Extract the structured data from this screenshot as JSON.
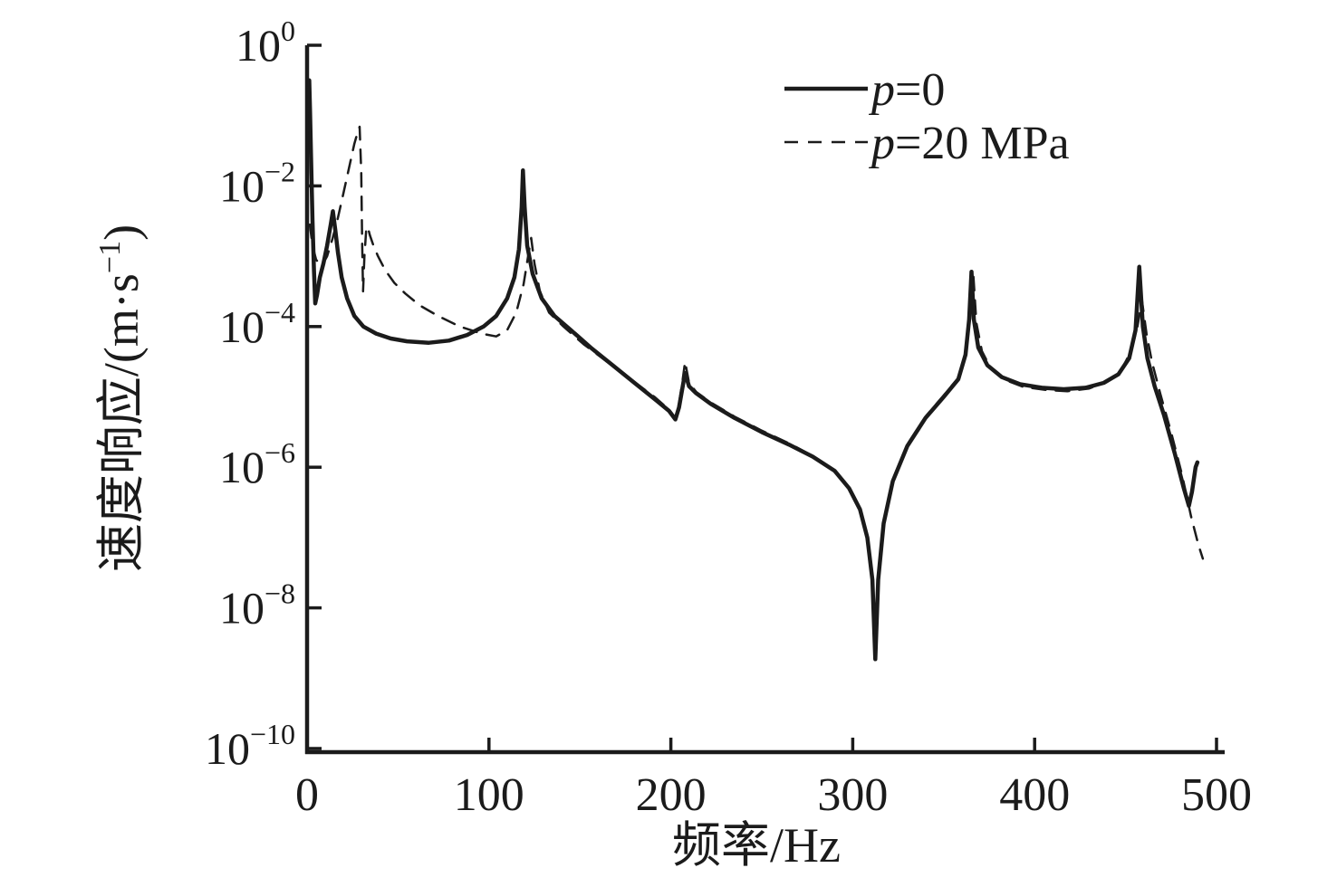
{
  "figure": {
    "background": "#ffffff",
    "ink_color": "#1b1b1b"
  },
  "chart_data": {
    "type": "line",
    "title": "",
    "xlabel": "频率/Hz",
    "ylabel_full": "速度响应/(m·s⁻¹)",
    "ylabel_prefix": "速度响应/(m·s",
    "ylabel_sup": "−1",
    "ylabel_suffix": ")",
    "xlim": [
      0,
      500
    ],
    "ylim_log10": [
      -10,
      0
    ],
    "x_ticks": [
      0,
      100,
      200,
      300,
      400,
      500
    ],
    "y_tick_base": "10",
    "y_tick_exponents": [
      0,
      -2,
      -4,
      -6,
      -8,
      -10
    ],
    "grid": false,
    "y_scale": "log",
    "legend": {
      "position": "top-right-inside",
      "entries": [
        {
          "label": "p=0",
          "italic_first_char": true,
          "style": "solid"
        },
        {
          "label": "p=20 MPa",
          "italic_first_char": true,
          "style": "dashed"
        }
      ]
    },
    "series": [
      {
        "name": "p=0",
        "style": "solid",
        "color": "#1b1b1b",
        "stroke_width": 4.5,
        "points_freq_log10v": [
          [
            1.2,
            -0.5
          ],
          [
            1.6,
            -0.9
          ],
          [
            2.2,
            -1.6
          ],
          [
            3.0,
            -2.5
          ],
          [
            3.8,
            -3.2
          ],
          [
            4.5,
            -3.67
          ],
          [
            5.5,
            -3.55
          ],
          [
            7,
            -3.3
          ],
          [
            9,
            -3.1
          ],
          [
            11,
            -2.85
          ],
          [
            13,
            -2.55
          ],
          [
            14.2,
            -2.36
          ],
          [
            15.5,
            -2.62
          ],
          [
            17,
            -2.95
          ],
          [
            19,
            -3.3
          ],
          [
            22,
            -3.6
          ],
          [
            26,
            -3.85
          ],
          [
            31,
            -4.0
          ],
          [
            38,
            -4.1
          ],
          [
            46,
            -4.17
          ],
          [
            55,
            -4.21
          ],
          [
            67,
            -4.23
          ],
          [
            78,
            -4.2
          ],
          [
            88,
            -4.12
          ],
          [
            97,
            -4.0
          ],
          [
            104,
            -3.85
          ],
          [
            110,
            -3.6
          ],
          [
            114,
            -3.3
          ],
          [
            116.5,
            -2.9
          ],
          [
            118,
            -2.3
          ],
          [
            118.7,
            -1.78
          ],
          [
            119.6,
            -2.3
          ],
          [
            121,
            -2.85
          ],
          [
            124,
            -3.25
          ],
          [
            129,
            -3.6
          ],
          [
            136,
            -3.85
          ],
          [
            145,
            -4.05
          ],
          [
            156,
            -4.3
          ],
          [
            168,
            -4.55
          ],
          [
            180,
            -4.8
          ],
          [
            192,
            -5.05
          ],
          [
            199,
            -5.2
          ],
          [
            202.5,
            -5.32
          ],
          [
            204.5,
            -5.15
          ],
          [
            206.5,
            -4.85
          ],
          [
            207.8,
            -4.66
          ],
          [
            210,
            -4.85
          ],
          [
            214,
            -4.95
          ],
          [
            222,
            -5.1
          ],
          [
            235,
            -5.3
          ],
          [
            250,
            -5.5
          ],
          [
            265,
            -5.68
          ],
          [
            278,
            -5.85
          ],
          [
            290,
            -6.05
          ],
          [
            298,
            -6.3
          ],
          [
            304,
            -6.6
          ],
          [
            308,
            -7.0
          ],
          [
            310.8,
            -7.6
          ],
          [
            312.4,
            -8.73
          ],
          [
            314,
            -7.6
          ],
          [
            317,
            -6.8
          ],
          [
            322,
            -6.2
          ],
          [
            330,
            -5.7
          ],
          [
            340,
            -5.3
          ],
          [
            350,
            -5.0
          ],
          [
            358,
            -4.75
          ],
          [
            362,
            -4.4
          ],
          [
            364,
            -3.9
          ],
          [
            365.3,
            -3.22
          ],
          [
            366.6,
            -3.9
          ],
          [
            369,
            -4.3
          ],
          [
            374,
            -4.55
          ],
          [
            382,
            -4.72
          ],
          [
            392,
            -4.82
          ],
          [
            404,
            -4.87
          ],
          [
            416,
            -4.89
          ],
          [
            428,
            -4.87
          ],
          [
            438,
            -4.8
          ],
          [
            446,
            -4.68
          ],
          [
            452,
            -4.45
          ],
          [
            455.5,
            -4.05
          ],
          [
            457.5,
            -3.15
          ],
          [
            459.5,
            -4.0
          ],
          [
            462,
            -4.45
          ],
          [
            466,
            -4.85
          ],
          [
            471,
            -5.25
          ],
          [
            477,
            -5.8
          ],
          [
            482,
            -6.3
          ],
          [
            484.8,
            -6.55
          ],
          [
            486.5,
            -6.35
          ],
          [
            488.5,
            -6.0
          ],
          [
            489.5,
            -5.93
          ]
        ]
      },
      {
        "name": "p=20 MPa",
        "style": "dashed",
        "color": "#1b1b1b",
        "stroke_width": 2.5,
        "dash": "15 11",
        "points_freq_log10v": [
          [
            1.5,
            -2.55
          ],
          [
            3,
            -2.85
          ],
          [
            5,
            -3.05
          ],
          [
            8,
            -3.14
          ],
          [
            11,
            -3.0
          ],
          [
            14,
            -2.75
          ],
          [
            17,
            -2.45
          ],
          [
            20,
            -2.1
          ],
          [
            23,
            -1.75
          ],
          [
            26,
            -1.4
          ],
          [
            28,
            -1.22
          ],
          [
            28.9,
            -1.16
          ],
          [
            29.8,
            -1.8
          ],
          [
            30.3,
            -2.8
          ],
          [
            30.8,
            -3.5
          ],
          [
            31.5,
            -3.0
          ],
          [
            32.5,
            -2.62
          ],
          [
            33.3,
            -2.58
          ],
          [
            34.5,
            -2.7
          ],
          [
            36.5,
            -2.85
          ],
          [
            39,
            -3.0
          ],
          [
            43,
            -3.2
          ],
          [
            48,
            -3.38
          ],
          [
            54,
            -3.53
          ],
          [
            62,
            -3.7
          ],
          [
            72,
            -3.85
          ],
          [
            84,
            -4.0
          ],
          [
            96,
            -4.1
          ],
          [
            104,
            -4.14
          ],
          [
            110,
            -4.05
          ],
          [
            115,
            -3.8
          ],
          [
            119,
            -3.4
          ],
          [
            121.5,
            -3.0
          ],
          [
            123.2,
            -2.74
          ],
          [
            125,
            -3.1
          ],
          [
            128,
            -3.5
          ],
          [
            133,
            -3.8
          ],
          [
            141,
            -4.0
          ],
          [
            152,
            -4.25
          ],
          [
            165,
            -4.5
          ],
          [
            178,
            -4.75
          ],
          [
            191,
            -5.0
          ],
          [
            199,
            -5.18
          ],
          [
            202.5,
            -5.3
          ],
          [
            204.5,
            -5.1
          ],
          [
            206.5,
            -4.75
          ],
          [
            207.8,
            -4.5
          ],
          [
            210,
            -4.8
          ],
          [
            214,
            -4.93
          ],
          [
            222,
            -5.08
          ],
          [
            235,
            -5.28
          ],
          [
            250,
            -5.48
          ],
          [
            265,
            -5.66
          ],
          [
            278,
            -5.84
          ],
          [
            290,
            -6.04
          ],
          [
            298,
            -6.28
          ],
          [
            304,
            -6.58
          ],
          [
            308,
            -6.98
          ],
          [
            310.8,
            -7.55
          ],
          [
            312.4,
            -8.6
          ],
          [
            314,
            -7.55
          ],
          [
            317,
            -6.78
          ],
          [
            322,
            -6.18
          ],
          [
            330,
            -5.68
          ],
          [
            340,
            -5.28
          ],
          [
            350,
            -4.98
          ],
          [
            358,
            -4.73
          ],
          [
            362,
            -4.38
          ],
          [
            364.5,
            -3.9
          ],
          [
            366.3,
            -3.26
          ],
          [
            368,
            -3.95
          ],
          [
            371,
            -4.35
          ],
          [
            376,
            -4.6
          ],
          [
            384,
            -4.76
          ],
          [
            394,
            -4.86
          ],
          [
            406,
            -4.9
          ],
          [
            418,
            -4.92
          ],
          [
            430,
            -4.88
          ],
          [
            440,
            -4.78
          ],
          [
            448,
            -4.6
          ],
          [
            453,
            -4.35
          ],
          [
            456.5,
            -4.0
          ],
          [
            459,
            -3.63
          ],
          [
            461.5,
            -4.1
          ],
          [
            464.5,
            -4.5
          ],
          [
            469,
            -4.95
          ],
          [
            475,
            -5.5
          ],
          [
            481,
            -6.1
          ],
          [
            486,
            -6.7
          ],
          [
            490,
            -7.1
          ],
          [
            492.5,
            -7.3
          ]
        ]
      }
    ]
  }
}
